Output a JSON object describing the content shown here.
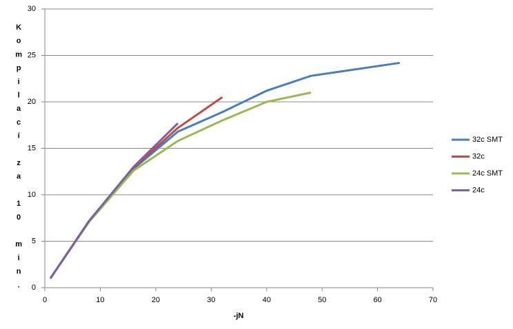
{
  "chart_data": {
    "type": "line",
    "x_label": "-jN",
    "y_label": "Kompilací za 10 min.",
    "x": [
      1,
      8,
      16,
      24,
      32,
      40,
      48,
      64
    ],
    "series": [
      {
        "name": "32c SMT",
        "color": "#4a7ebb",
        "values": [
          1.0,
          7.2,
          12.8,
          16.8,
          18.9,
          21.2,
          22.8,
          24.2
        ]
      },
      {
        "name": "32c",
        "color": "#be4b48",
        "values": [
          1.0,
          7.2,
          12.9,
          17.2,
          20.5,
          null,
          null,
          null
        ]
      },
      {
        "name": "24c SMT",
        "color": "#98b954",
        "values": [
          1.0,
          7.1,
          12.6,
          15.8,
          18.0,
          20.0,
          21.0,
          null
        ]
      },
      {
        "name": "24c",
        "color": "#7d60a0",
        "values": [
          1.0,
          7.2,
          13.0,
          17.7,
          null,
          null,
          null,
          null
        ]
      }
    ],
    "xlim": [
      0,
      70
    ],
    "xticks": [
      0,
      10,
      20,
      30,
      40,
      50,
      60,
      70
    ],
    "ylim": [
      0,
      30
    ],
    "yticks": [
      0,
      5,
      10,
      15,
      20,
      25,
      30
    ],
    "grid": true,
    "legend": "right"
  }
}
